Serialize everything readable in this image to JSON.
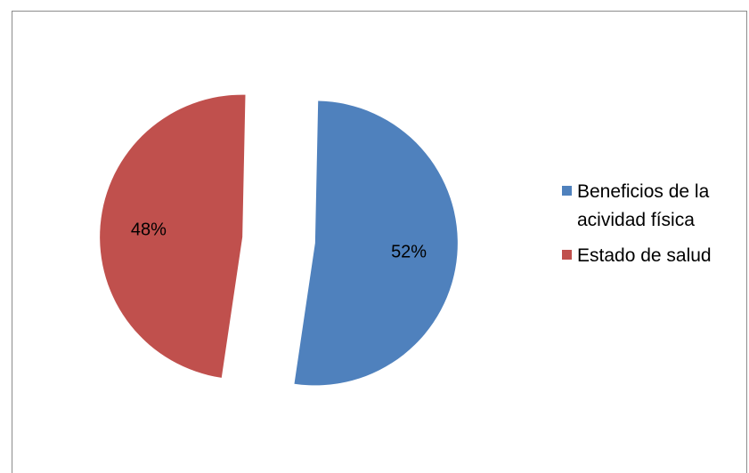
{
  "chart_data": {
    "type": "pie",
    "title": "",
    "slices": [
      {
        "label": "Beneficios de la acividad física",
        "value": 52,
        "data_label": "52%",
        "color": "#4F81BD",
        "exploded": true
      },
      {
        "label": "Estado de salud",
        "value": 48,
        "data_label": "48%",
        "color": "#C0504D",
        "exploded": true
      }
    ],
    "legend": {
      "position": "right",
      "entries": [
        "Beneficios de la acividad física",
        "Estado de salud"
      ]
    }
  }
}
